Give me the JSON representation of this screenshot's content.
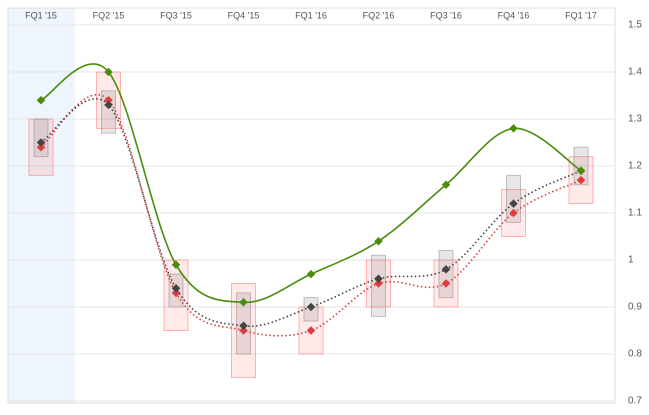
{
  "chart_data": {
    "type": "line",
    "categories": [
      "FQ1 '15",
      "FQ2 '15",
      "FQ3 '15",
      "FQ4 '15",
      "FQ1 '16",
      "FQ2 '16",
      "FQ3 '16",
      "FQ4 '16",
      "FQ1 '17"
    ],
    "ranges": [
      {
        "color": "#ff6b6b",
        "low": [
          1.18,
          1.28,
          0.85,
          0.75,
          0.8,
          0.9,
          0.9,
          1.05,
          1.12
        ],
        "high": [
          1.3,
          1.4,
          1.0,
          0.95,
          0.9,
          1.0,
          1.0,
          1.15,
          1.22
        ]
      },
      {
        "color": "#888888",
        "low": [
          1.22,
          1.27,
          0.9,
          0.8,
          0.87,
          0.88,
          0.92,
          1.08,
          1.16
        ],
        "high": [
          1.3,
          1.36,
          0.97,
          0.93,
          0.92,
          1.01,
          1.02,
          1.18,
          1.24
        ]
      }
    ],
    "series": [
      {
        "color": "#e03c3c",
        "dotted": true,
        "values": [
          1.24,
          1.34,
          0.93,
          0.85,
          0.85,
          0.95,
          0.95,
          1.1,
          1.17
        ]
      },
      {
        "color": "#444444",
        "dotted": true,
        "values": [
          1.25,
          1.33,
          0.94,
          0.86,
          0.9,
          0.96,
          0.98,
          1.12,
          1.19
        ]
      },
      {
        "color": "#4a8c0c",
        "dotted": false,
        "values": [
          1.34,
          1.4,
          0.99,
          0.91,
          0.97,
          1.04,
          1.16,
          1.28,
          1.19
        ]
      }
    ],
    "ylim": [
      0.7,
      1.5
    ],
    "yticks": [
      0.7,
      0.8,
      0.9,
      1,
      1.1,
      1.2,
      1.3,
      1.4,
      1.5
    ],
    "grid": true
  }
}
